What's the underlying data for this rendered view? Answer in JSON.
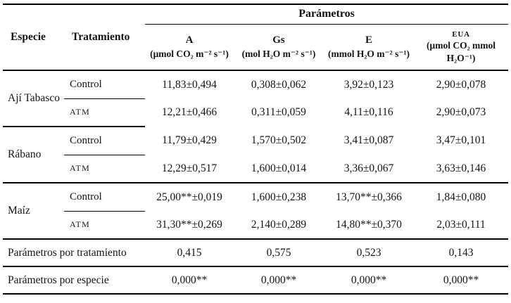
{
  "table": {
    "header": {
      "especie": "Especie",
      "tratamiento": "Tratamiento",
      "parametros_group": "Parámetros",
      "columns": [
        {
          "symbol": "A",
          "units": "(μmol CO₂ m⁻² s⁻¹)"
        },
        {
          "symbol": "Gs",
          "units": "(mol H₂O m⁻² s⁻¹)"
        },
        {
          "symbol": "E",
          "units": "(mmol H₂O m⁻² s⁻¹)"
        },
        {
          "symbol": "EUA",
          "units": "(μmol CO₂ mmol H₂O⁻¹)"
        }
      ]
    },
    "groups": [
      {
        "especie": "Ají Tabasco",
        "rows": [
          {
            "tratamiento": "Control",
            "values": [
              "11,83±0,494",
              "0,308±0,062",
              "3,92±0,123",
              "2,90±0,078"
            ]
          },
          {
            "tratamiento": "ATM",
            "values": [
              "12,21±0,466",
              "0,311±0,059",
              "4,11±0,116",
              "2,90±0,073"
            ]
          }
        ]
      },
      {
        "especie": "Rábano",
        "rows": [
          {
            "tratamiento": "Control",
            "values": [
              "11,79±0,429",
              "1,570±0,502",
              "3,41±0,087",
              "3,47±0,101"
            ]
          },
          {
            "tratamiento": "ATM",
            "values": [
              "12,29±0,517",
              "1,600±0,014",
              "3,36±0,067",
              "3,63±0,146"
            ]
          }
        ]
      },
      {
        "especie": "Maíz",
        "rows": [
          {
            "tratamiento": "Control",
            "values": [
              "25,00**±0,019",
              "1,600±0,238",
              "13,70**±0,366",
              "1,84±0,080"
            ]
          },
          {
            "tratamiento": "ATM",
            "values": [
              "31,30**±0,269",
              "2,140±0,289",
              "14,80**±0,370",
              "2,03±0,111"
            ]
          }
        ]
      }
    ],
    "footer": [
      {
        "label": "Parámetros por tratamiento",
        "values": [
          "0,415",
          "0,575",
          "0,523",
          "0,143"
        ]
      },
      {
        "label": "Parámetros por especie",
        "values": [
          "0,000**",
          "0,000**",
          "0,000**",
          "0,000**"
        ]
      }
    ]
  },
  "colors": {
    "rule": "#000000",
    "text": "#141414",
    "background": "#ffffff"
  }
}
